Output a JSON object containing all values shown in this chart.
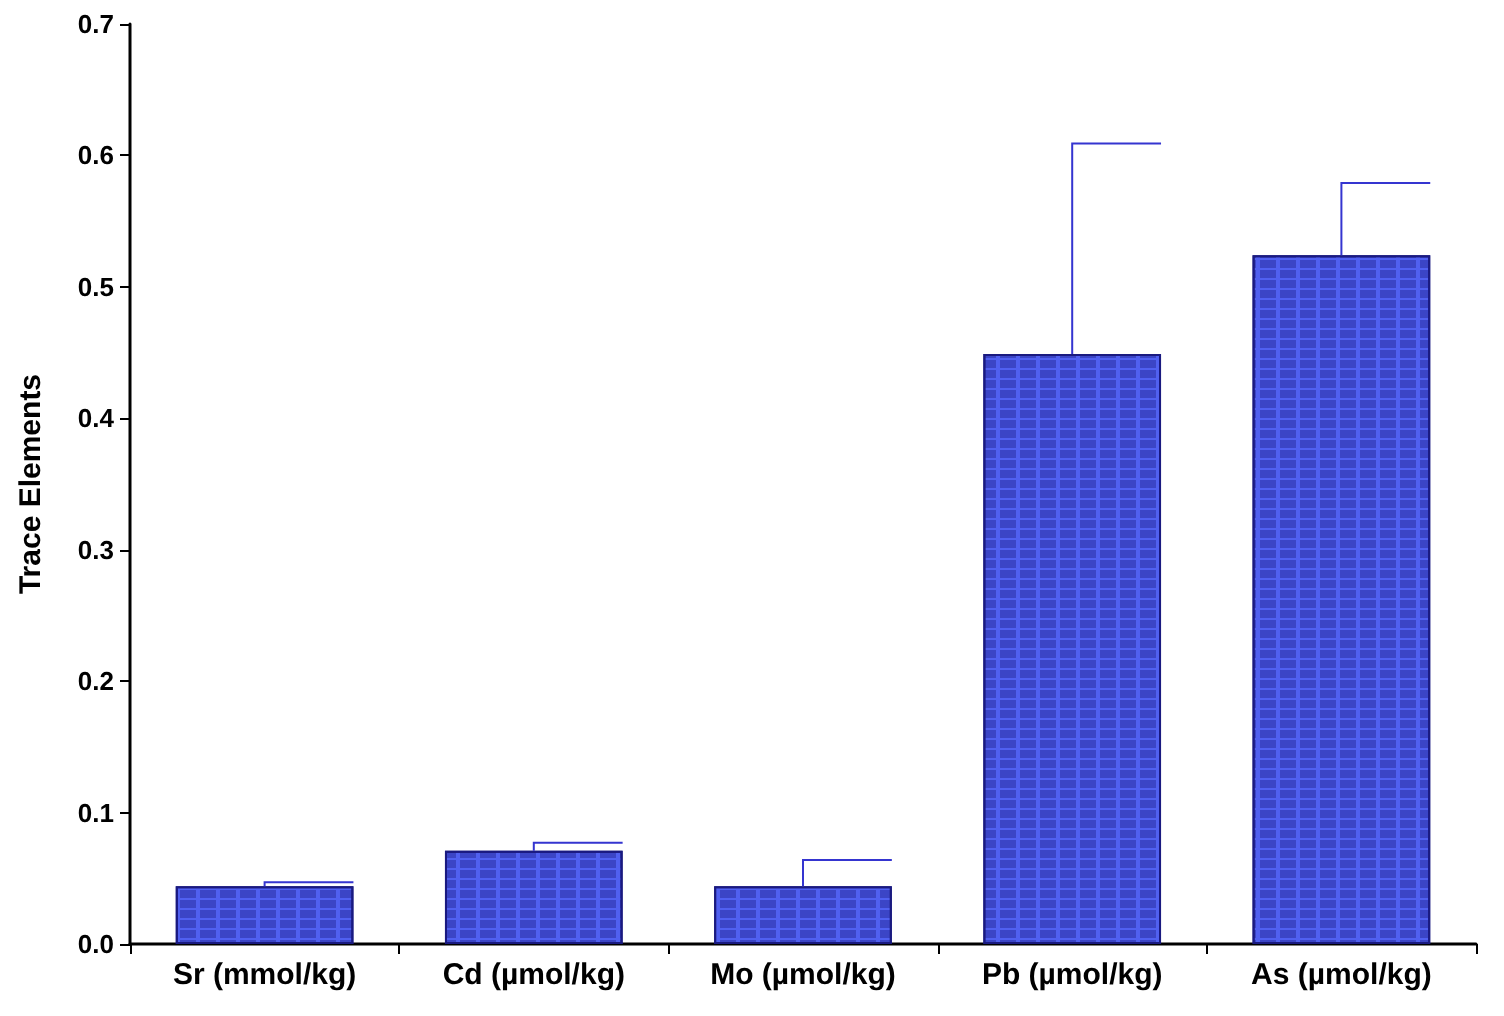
{
  "chart_data": {
    "type": "bar",
    "ylabel": "Trace Elements",
    "categories": [
      "Sr (mmol/kg)",
      "Cd (µmol/kg)",
      "Mo (µmol/kg)",
      "Pb (µmol/kg)",
      "As (µmol/kg)"
    ],
    "values": [
      0.044,
      0.071,
      0.044,
      0.449,
      0.524
    ],
    "errors": [
      [
        0.044,
        0.047
      ],
      [
        0.071,
        0.077
      ],
      [
        0.044,
        0.064
      ],
      [
        0.449,
        0.609
      ],
      [
        0.524,
        0.579
      ]
    ],
    "color": "#5060f0",
    "ylim": [
      0,
      0.7
    ],
    "yticks": [
      {
        "value": 0,
        "label": "0.0"
      },
      {
        "value": 0.1,
        "label": "0.1"
      },
      {
        "value": 0.2,
        "label": "0.2"
      },
      {
        "value": 0.3,
        "label": "0.3"
      },
      {
        "value": 0.4,
        "label": "0.4"
      },
      {
        "value": 0.5,
        "label": "0.5"
      },
      {
        "value": 0.6,
        "label": "0.6"
      },
      {
        "value": 0.7,
        "label": "0.7"
      }
    ],
    "grid": false
  }
}
